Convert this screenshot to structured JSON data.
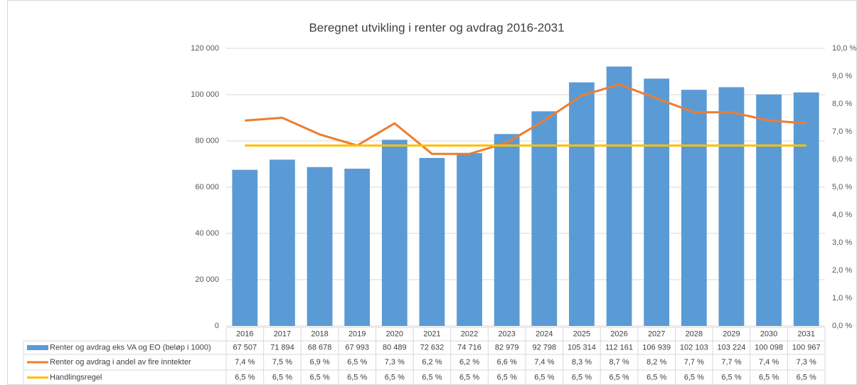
{
  "chart_data": {
    "type": "bar",
    "title": "Beregnet utvikling i renter og avdrag 2016-2031",
    "categories": [
      "2016",
      "2017",
      "2018",
      "2019",
      "2020",
      "2021",
      "2022",
      "2023",
      "2024",
      "2025",
      "2026",
      "2027",
      "2028",
      "2029",
      "2030",
      "2031"
    ],
    "series": [
      {
        "name": "Renter og avdrag eks VA og EO (beløp i 1000)",
        "type": "bar",
        "color": "#5b9bd5",
        "values": [
          67507,
          71894,
          68678,
          67993,
          80489,
          72632,
          74716,
          82979,
          92798,
          105314,
          112161,
          106939,
          102103,
          103224,
          100098,
          100967
        ],
        "value_labels": [
          "67 507",
          "71 894",
          "68 678",
          "67 993",
          "80 489",
          "72 632",
          "74 716",
          "82 979",
          "92 798",
          "105 314",
          "112 161",
          "106 939",
          "102 103",
          "103 224",
          "100 098",
          "100 967"
        ]
      },
      {
        "name": "Renter og avdrag i andel av fire inntekter",
        "type": "line",
        "axis": "y2",
        "color": "#ed7d31",
        "values": [
          7.4,
          7.5,
          6.9,
          6.5,
          7.3,
          6.2,
          6.2,
          6.6,
          7.4,
          8.3,
          8.7,
          8.2,
          7.7,
          7.7,
          7.4,
          7.3
        ],
        "value_labels": [
          "7,4 %",
          "7,5 %",
          "6,9 %",
          "6,5 %",
          "7,3 %",
          "6,2 %",
          "6,2 %",
          "6,6 %",
          "7,4 %",
          "8,3 %",
          "8,7 %",
          "8,2 %",
          "7,7 %",
          "7,7 %",
          "7,4 %",
          "7,3 %"
        ]
      },
      {
        "name": "Handlingsregel",
        "type": "line",
        "axis": "y2",
        "color": "#ffc000",
        "values": [
          6.5,
          6.5,
          6.5,
          6.5,
          6.5,
          6.5,
          6.5,
          6.5,
          6.5,
          6.5,
          6.5,
          6.5,
          6.5,
          6.5,
          6.5,
          6.5
        ],
        "value_labels": [
          "6,5 %",
          "6,5 %",
          "6,5 %",
          "6,5 %",
          "6,5 %",
          "6,5 %",
          "6,5 %",
          "6,5 %",
          "6,5 %",
          "6,5 %",
          "6,5 %",
          "6,5 %",
          "6,5 %",
          "6,5 %",
          "6,5 %",
          "6,5 %"
        ]
      }
    ],
    "ylim": [
      0,
      120000
    ],
    "yticks": [
      0,
      {
        "value": 20000,
        "label": "20 000"
      },
      {
        "value": 40000,
        "label": "40 000"
      },
      {
        "value": 60000,
        "label": "60 000"
      },
      {
        "value": 80000,
        "label": "80 000"
      },
      {
        "value": 100000,
        "label": "100 000"
      },
      {
        "value": 120000,
        "label": "120 000"
      }
    ],
    "y2lim": [
      0,
      10
    ],
    "y2ticks": [
      {
        "value": 0,
        "label": "0,0 %"
      },
      {
        "value": 1,
        "label": "1,0 %"
      },
      {
        "value": 2,
        "label": "2,0 %"
      },
      {
        "value": 3,
        "label": "3,0 %"
      },
      {
        "value": 4,
        "label": "4,0 %"
      },
      {
        "value": 5,
        "label": "5,0 %"
      },
      {
        "value": 6,
        "label": "6,0 %"
      },
      {
        "value": 7,
        "label": "7,0 %"
      },
      {
        "value": 8,
        "label": "8,0 %"
      },
      {
        "value": 9,
        "label": "9,0 %"
      },
      {
        "value": 10,
        "label": "10,0 %"
      }
    ],
    "grid": true
  }
}
